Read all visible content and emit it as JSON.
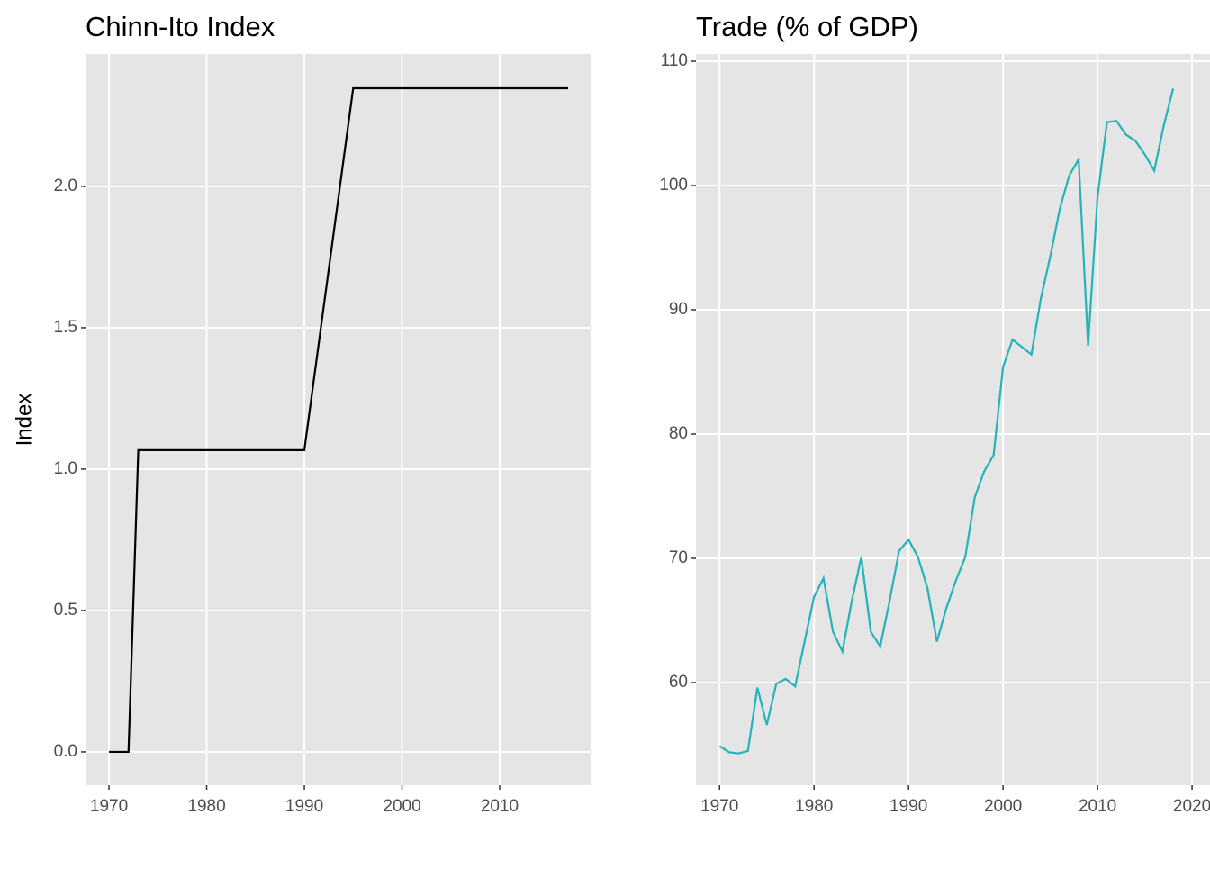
{
  "chart_data": [
    {
      "type": "line",
      "title": "Chinn-Ito Index",
      "y_label": "Index",
      "color": "#000000",
      "x": [
        1970,
        1971,
        1972,
        1973,
        1974,
        1975,
        1976,
        1977,
        1978,
        1979,
        1980,
        1981,
        1982,
        1983,
        1984,
        1985,
        1986,
        1987,
        1988,
        1989,
        1990,
        1991,
        1992,
        1993,
        1994,
        1995,
        1996,
        1997,
        1998,
        1999,
        2000,
        2001,
        2002,
        2003,
        2004,
        2005,
        2006,
        2007,
        2008,
        2009,
        2010,
        2011,
        2012,
        2013,
        2014,
        2015,
        2016,
        2017
      ],
      "values": [
        0,
        0,
        0,
        1.067,
        1.067,
        1.067,
        1.067,
        1.067,
        1.067,
        1.067,
        1.067,
        1.067,
        1.067,
        1.067,
        1.067,
        1.067,
        1.067,
        1.067,
        1.067,
        1.067,
        1.067,
        1.323,
        1.579,
        1.835,
        2.091,
        2.347,
        2.347,
        2.347,
        2.347,
        2.347,
        2.347,
        2.347,
        2.347,
        2.347,
        2.347,
        2.347,
        2.347,
        2.347,
        2.347,
        2.347,
        2.347,
        2.347,
        2.347,
        2.347,
        2.347,
        2.347,
        2.347,
        2.347
      ],
      "xlim": [
        1967.6,
        2019.4
      ],
      "ylim": [
        -0.118,
        2.468
      ],
      "xticks": [
        1970,
        1980,
        1990,
        2000,
        2010
      ],
      "yticks": [
        {
          "value": 0,
          "label": "0.0"
        },
        0.5,
        {
          "value": 1,
          "label": "1.0"
        },
        1.5,
        {
          "value": 2,
          "label": "2.0"
        }
      ],
      "grid": true
    },
    {
      "type": "line",
      "title": "Trade (% of GDP)",
      "color": "#23b3b8",
      "x": [
        1970,
        1971,
        1972,
        1973,
        1974,
        1975,
        1976,
        1977,
        1978,
        1979,
        1980,
        1981,
        1982,
        1983,
        1984,
        1985,
        1986,
        1987,
        1988,
        1989,
        1990,
        1991,
        1992,
        1993,
        1994,
        1995,
        1996,
        1997,
        1998,
        1999,
        2000,
        2001,
        2002,
        2003,
        2004,
        2005,
        2006,
        2007,
        2008,
        2009,
        2010,
        2011,
        2012,
        2013,
        2014,
        2015,
        2016,
        2017,
        2018
      ],
      "values": [
        54.9,
        54.4,
        54.3,
        54.5,
        59.6,
        56.6,
        59.9,
        60.3,
        59.7,
        63.3,
        66.9,
        68.4,
        64.1,
        62.5,
        66.6,
        70.1,
        64.1,
        62.9,
        66.6,
        70.6,
        71.5,
        70.1,
        67.6,
        63.3,
        66.0,
        68.2,
        70.1,
        74.9,
        77.0,
        78.3,
        85.4,
        87.6,
        87.0,
        86.4,
        90.9,
        94.3,
        98.1,
        100.8,
        102.1,
        87.1,
        99.1,
        105.1,
        105.2,
        104.1,
        103.6,
        102.5,
        101.2,
        104.8,
        107.8
      ],
      "xlim": [
        1967.5,
        2021.9
      ],
      "ylim": [
        51.74,
        110.58
      ],
      "xticks": [
        1970,
        1980,
        1990,
        2000,
        2010,
        2020
      ],
      "yticks": [
        60,
        70,
        80,
        90,
        100,
        110
      ],
      "grid": true
    }
  ]
}
